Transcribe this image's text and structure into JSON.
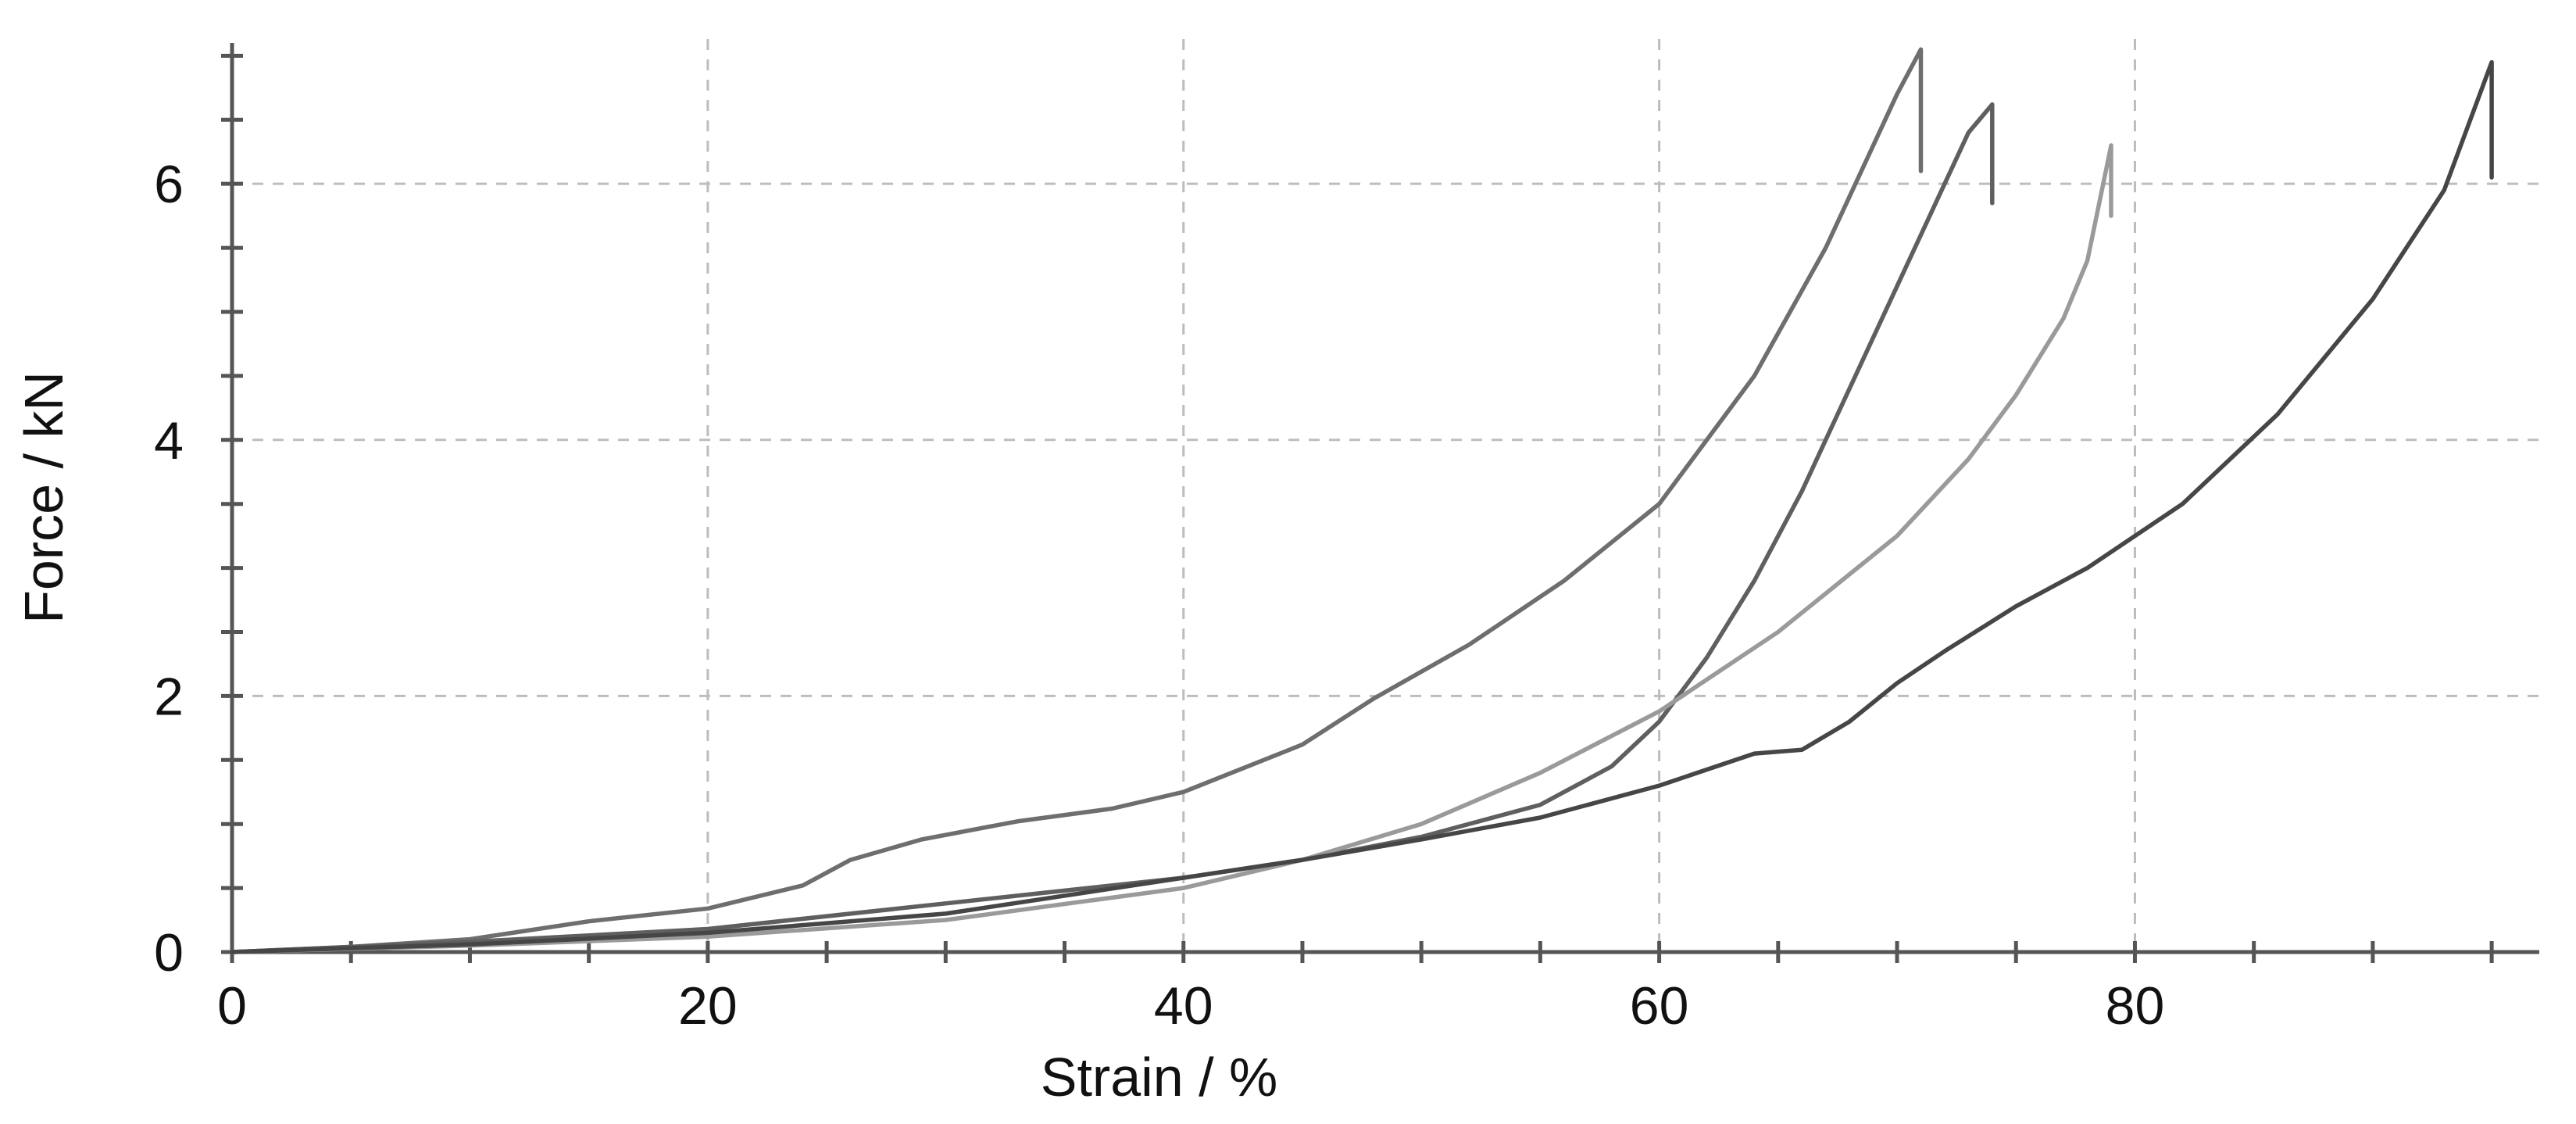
{
  "chart_data": {
    "type": "line",
    "title": "",
    "xlabel": "Strain / %",
    "ylabel": "Force / kN",
    "xlim": [
      0,
      97
    ],
    "ylim": [
      0,
      7.1
    ],
    "x_ticks": [
      0,
      20,
      40,
      60,
      80
    ],
    "x_tick_labels": [
      "0",
      "20",
      "40",
      "60",
      "80"
    ],
    "y_ticks": [
      0,
      2,
      4,
      6
    ],
    "y_tick_labels": [
      "0",
      "2",
      "4",
      "6"
    ],
    "x_minor_step": 5,
    "y_minor_step": 0.5,
    "grid": true,
    "legend": "none",
    "series": [
      {
        "color": "#6e6e6e",
        "x": [
          0,
          5,
          10,
          15,
          20,
          24,
          26,
          29,
          33,
          37,
          40,
          45,
          48,
          52,
          56,
          60,
          64,
          67,
          69,
          70,
          71,
          71,
          71
        ],
        "y": [
          0,
          0.04,
          0.1,
          0.24,
          0.34,
          0.52,
          0.72,
          0.88,
          1.02,
          1.12,
          1.25,
          1.62,
          1.98,
          2.4,
          2.9,
          3.5,
          4.5,
          5.5,
          6.3,
          6.7,
          7.05,
          6.1,
          6.1
        ]
      },
      {
        "color": "#5f5f5f",
        "x": [
          0,
          10,
          20,
          30,
          40,
          45,
          50,
          55,
          58,
          60,
          62,
          64,
          66,
          68,
          70,
          72,
          73,
          74,
          74,
          74
        ],
        "y": [
          0,
          0.08,
          0.18,
          0.38,
          0.58,
          0.72,
          0.9,
          1.15,
          1.45,
          1.8,
          2.3,
          2.9,
          3.6,
          4.4,
          5.2,
          6.0,
          6.4,
          6.62,
          5.85,
          5.85
        ]
      },
      {
        "color": "#9a9a9a",
        "x": [
          0,
          10,
          20,
          30,
          40,
          45,
          50,
          55,
          60,
          65,
          70,
          73,
          75,
          77,
          78,
          79,
          79,
          79
        ],
        "y": [
          0,
          0.05,
          0.12,
          0.25,
          0.5,
          0.72,
          1.0,
          1.4,
          1.88,
          2.5,
          3.25,
          3.85,
          4.35,
          4.95,
          5.4,
          6.3,
          5.75,
          5.75
        ]
      },
      {
        "color": "#464646",
        "x": [
          0,
          10,
          20,
          30,
          40,
          45,
          50,
          55,
          60,
          64,
          66,
          68,
          70,
          72,
          75,
          78,
          82,
          86,
          90,
          93,
          95,
          95,
          95
        ],
        "y": [
          0,
          0.06,
          0.15,
          0.3,
          0.58,
          0.72,
          0.88,
          1.05,
          1.3,
          1.55,
          1.58,
          1.8,
          2.1,
          2.35,
          2.7,
          3.0,
          3.5,
          4.2,
          5.1,
          5.95,
          6.95,
          6.05,
          6.05
        ]
      }
    ]
  }
}
